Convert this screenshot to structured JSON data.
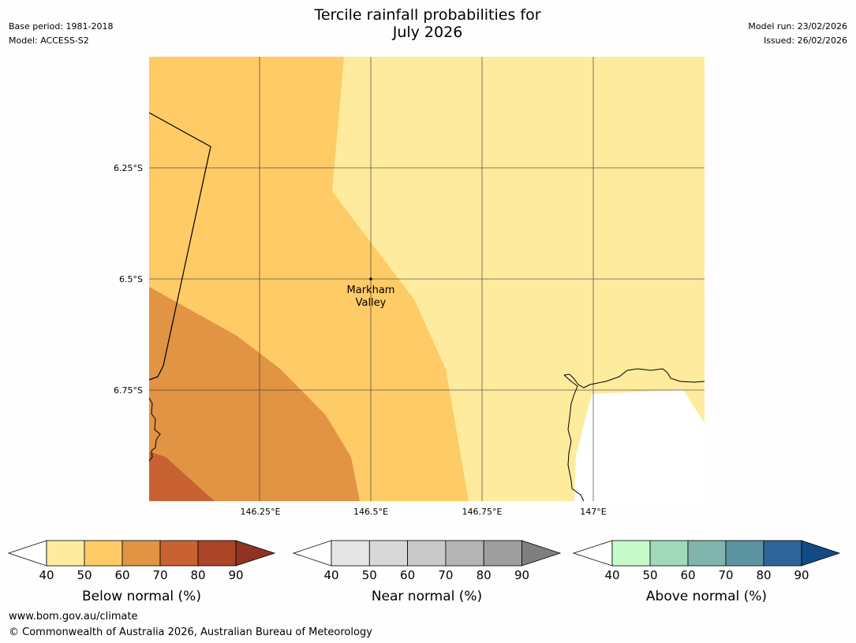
{
  "title_line1": "Tercile rainfall probabilities for",
  "title_line2": "July 2026",
  "meta_left": {
    "base_period": "Base period: 1981-2018",
    "model": "Model: ACCESS-S2"
  },
  "meta_right": {
    "model_run": "Model run: 23/02/2026",
    "issued": "Issued: 26/02/2026"
  },
  "map": {
    "place_label_line1": "Markham",
    "place_label_line2": "Valley",
    "lat_labels": [
      "6.25°S",
      "6.5°S",
      "6.75°S"
    ],
    "lon_labels": [
      "146.25°E",
      "146.5°E",
      "146.75°E",
      "147°E"
    ],
    "region_colors": {
      "band_40_50": "#ffeb9e",
      "band_50_60": "#fecb66",
      "band_60_70": "#e09444",
      "band_70_80": "#c86232"
    }
  },
  "colorbars": [
    {
      "title": "Below normal (%)",
      "ticks": [
        "40",
        "50",
        "60",
        "70",
        "80",
        "90"
      ],
      "under_color": "#ffffff",
      "colors": [
        "#ffeb9e",
        "#fecb66",
        "#e09444",
        "#c86232",
        "#aa4527"
      ],
      "over_color": "#8e3420"
    },
    {
      "title": "Near normal (%)",
      "ticks": [
        "40",
        "50",
        "60",
        "70",
        "80",
        "90"
      ],
      "under_color": "#ffffff",
      "colors": [
        "#e6e6e6",
        "#d8d8d8",
        "#c9c9c9",
        "#b5b5b5",
        "#9e9e9e"
      ],
      "over_color": "#7f7f7f"
    },
    {
      "title": "Above normal (%)",
      "ticks": [
        "40",
        "50",
        "60",
        "70",
        "80",
        "90"
      ],
      "under_color": "#ffffff",
      "colors": [
        "#c8fbcb",
        "#a1d9ba",
        "#80b4ad",
        "#5b93a0",
        "#2e6497"
      ],
      "over_color": "#114b86"
    }
  ],
  "footer": {
    "url": "www.bom.gov.au/climate",
    "copyright": "© Commonwealth of Australia 2026, Australian Bureau of Meteorology"
  }
}
